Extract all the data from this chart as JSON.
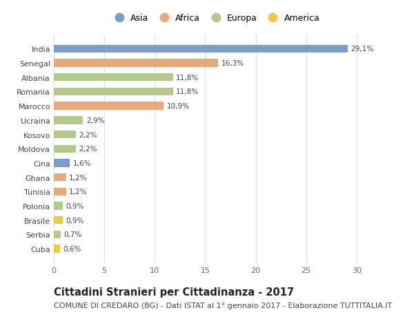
{
  "countries": [
    "India",
    "Senegal",
    "Albania",
    "Romania",
    "Marocco",
    "Ucraina",
    "Kosovo",
    "Moldova",
    "Cina",
    "Ghana",
    "Tunisia",
    "Polonia",
    "Brasile",
    "Serbia",
    "Cuba"
  ],
  "values": [
    29.1,
    16.3,
    11.8,
    11.8,
    10.9,
    2.9,
    2.2,
    2.2,
    1.6,
    1.2,
    1.2,
    0.9,
    0.9,
    0.7,
    0.6
  ],
  "labels": [
    "29,1%",
    "16,3%",
    "11,8%",
    "11,8%",
    "10,9%",
    "2,9%",
    "2,2%",
    "2,2%",
    "1,6%",
    "1,2%",
    "1,2%",
    "0,9%",
    "0,9%",
    "0,7%",
    "0,6%"
  ],
  "continents": [
    "Asia",
    "Africa",
    "Europa",
    "Europa",
    "Africa",
    "Europa",
    "Europa",
    "Europa",
    "Asia",
    "Africa",
    "Africa",
    "Europa",
    "America",
    "Europa",
    "America"
  ],
  "continent_colors": {
    "Asia": "#7b9dc9",
    "Africa": "#e8aa7c",
    "Europa": "#b5c98e",
    "America": "#f0c84a"
  },
  "legend_order": [
    "Asia",
    "Africa",
    "Europa",
    "America"
  ],
  "title": "Cittadini Stranieri per Cittadinanza - 2017",
  "subtitle": "COMUNE DI CREDARO (BG) - Dati ISTAT al 1° gennaio 2017 - Elaborazione TUTTITALIA.IT",
  "xlim": [
    0,
    32
  ],
  "xticks": [
    0,
    5,
    10,
    15,
    20,
    25,
    30
  ],
  "background_color": "#ffffff",
  "grid_color": "#dddddd",
  "bar_height": 0.55,
  "title_fontsize": 10.5,
  "subtitle_fontsize": 8,
  "label_fontsize": 7.5,
  "tick_fontsize": 8,
  "legend_fontsize": 9
}
